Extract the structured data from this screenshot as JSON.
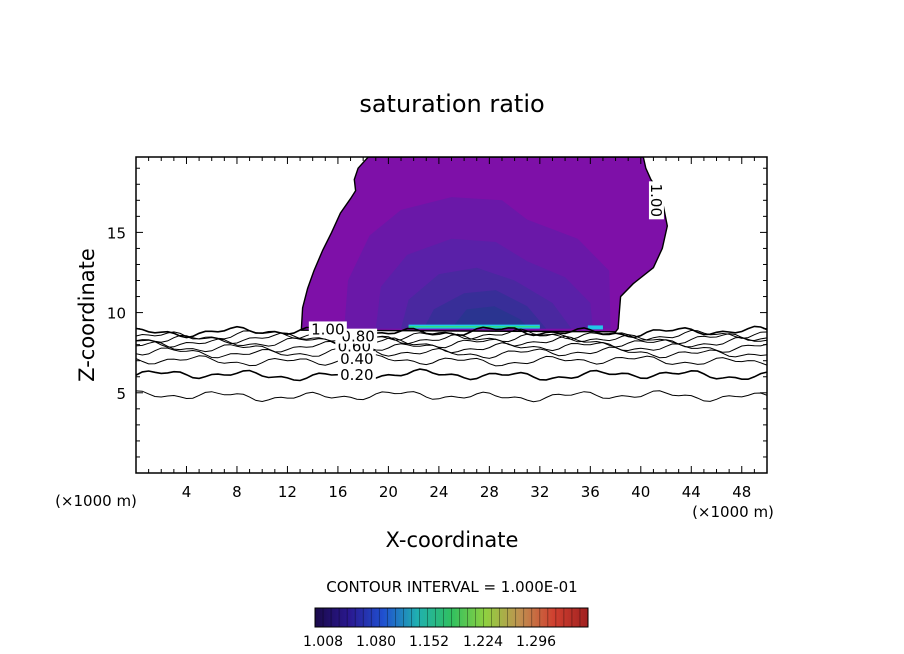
{
  "chart_data": {
    "type": "contour",
    "title": "saturation ratio",
    "xlabel": "X-coordinate",
    "ylabel": "Z-coordinate",
    "x_unit_left": "(×1000 m)",
    "x_unit_right": "(×1000 m)",
    "xlim": [
      0,
      50
    ],
    "ylim": [
      0,
      19.7
    ],
    "xticks": [
      4,
      8,
      12,
      16,
      20,
      24,
      28,
      32,
      36,
      40,
      44,
      48
    ],
    "yticks": [
      5,
      10,
      15
    ],
    "grid": false,
    "contour_lines": [
      {
        "level": "0.20",
        "base_z": 6.1
      },
      {
        "level": "",
        "base_z": 4.8
      },
      {
        "level": "0.40",
        "base_z": 7.0
      },
      {
        "level": "",
        "base_z": 7.5
      },
      {
        "level": "0.60",
        "base_z": 7.85
      },
      {
        "level": "",
        "base_z": 8.15
      },
      {
        "level": "0.80",
        "base_z": 8.4
      },
      {
        "level": "",
        "base_z": 8.6
      },
      {
        "level": "1.00",
        "base_z": 8.8
      }
    ],
    "cloud_outline_label": "1.00",
    "contour_interval": "CONTOUR INTERVAL = 1.000E-01",
    "colorbar": {
      "ticks": [
        "1.008",
        "1.080",
        "1.152",
        "1.224",
        "1.296"
      ],
      "colors": [
        "#1a0a4a",
        "#2a1890",
        "#2050d0",
        "#20b0b0",
        "#30c060",
        "#90d040",
        "#c09050",
        "#d04030",
        "#a02020"
      ]
    },
    "fill_colors": [
      "#7e10a8",
      "#6a18a8",
      "#5a20a8",
      "#4a28a0",
      "#382e98",
      "#2a3490"
    ],
    "highlight_colors": [
      "#20c8e8",
      "#30e070"
    ]
  }
}
